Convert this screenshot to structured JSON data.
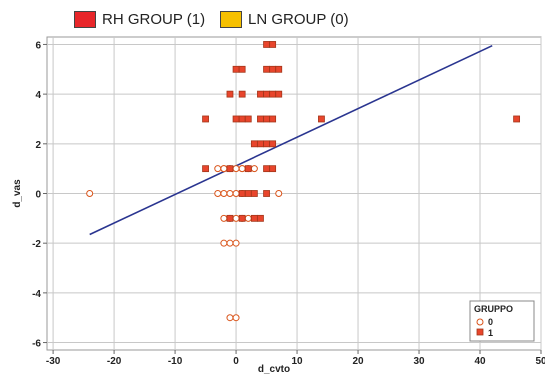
{
  "legend_top": [
    {
      "label": "RH GROUP (1)",
      "color": "#e8262a"
    },
    {
      "label": "LN GROUP (0)",
      "color": "#f6c000"
    }
  ],
  "chart_data": {
    "type": "scatter",
    "xlabel": "d_cvto",
    "ylabel": "d_vas",
    "xlim": [
      -31,
      50
    ],
    "ylim": [
      -6.3,
      6.3
    ],
    "xticks": [
      "-30",
      "-20",
      "-10",
      "0",
      "10",
      "20",
      "30",
      "40",
      "50"
    ],
    "yticks": [
      "-6",
      "-4",
      "-2",
      "0",
      "2",
      "4",
      "6"
    ],
    "grid": true,
    "legend": {
      "title": "GRUPPO",
      "position": "bottom-right",
      "entries": [
        "0",
        "1"
      ]
    },
    "colors": {
      "grid": "#c8c8c8",
      "marker_edge": "#d9541a",
      "marker_fill_1": "#e8452c",
      "line": "#2a3590"
    },
    "series": [
      {
        "name": "0",
        "marker": "circle",
        "x": [
          -24,
          -3,
          -2,
          -1,
          0,
          1,
          -2,
          1,
          -3,
          -2,
          -1,
          0,
          1,
          2,
          3,
          7,
          -2,
          -1,
          0,
          1,
          2,
          -2,
          -1,
          0,
          -1,
          0
        ],
        "y": [
          0,
          0,
          0,
          0,
          0,
          0,
          1,
          1,
          1,
          1,
          1,
          1,
          1,
          1,
          1,
          0,
          -1,
          -1,
          -1,
          -1,
          -1,
          -2,
          -2,
          -2,
          -5,
          -5
        ]
      },
      {
        "name": "1",
        "marker": "square",
        "x": [
          5,
          6,
          0,
          1,
          5,
          6,
          7,
          -1,
          1,
          4,
          5,
          6,
          7,
          0,
          1,
          2,
          4,
          5,
          6,
          14,
          46,
          -5,
          3,
          4,
          5,
          6,
          -5,
          -1,
          2,
          5,
          6,
          1,
          2,
          3,
          5,
          -1,
          1,
          3,
          4
        ],
        "y": [
          6,
          6,
          5,
          5,
          5,
          5,
          5,
          4,
          4,
          4,
          4,
          4,
          4,
          3,
          3,
          3,
          3,
          3,
          3,
          3,
          3,
          3,
          2,
          2,
          2,
          2,
          1,
          1,
          1,
          1,
          1,
          0,
          0,
          0,
          0,
          -1,
          -1,
          -1,
          -1
        ]
      }
    ],
    "fit_line": {
      "x": [
        -24,
        42
      ],
      "y": [
        -1.65,
        5.95
      ]
    }
  }
}
